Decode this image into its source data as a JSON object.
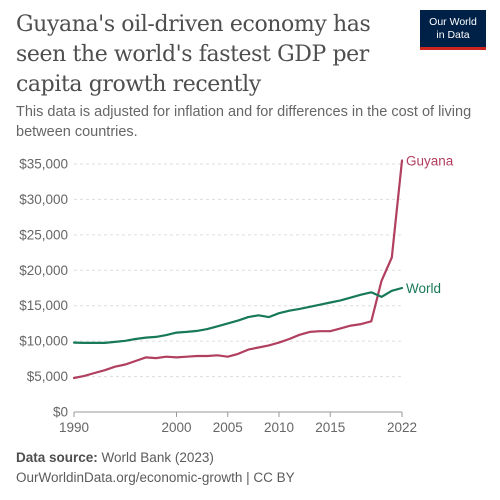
{
  "header": {
    "title": "Guyana's oil-driven economy has seen the world's fastest GDP per capita growth recently",
    "subtitle": "This data is adjusted for inflation and for differences in the cost of living between countries.",
    "logo_line1": "Our World",
    "logo_line2": "in Data"
  },
  "footer": {
    "source_label": "Data source:",
    "source_value": "World Bank (2023)",
    "url": "OurWorldinData.org/economic-growth | CC BY"
  },
  "colors": {
    "guyana": "#b13f5f",
    "world": "#18795a",
    "logo_bg": "#002147",
    "logo_accent": "#ce261e"
  },
  "chart_data": {
    "type": "line",
    "x_ticks": [
      1990,
      2000,
      2005,
      2010,
      2015,
      2022
    ],
    "y_ticks": [
      "$0",
      "$5,000",
      "$10,000",
      "$15,000",
      "$20,000",
      "$25,000",
      "$30,000",
      "$35,000"
    ],
    "y_tick_values": [
      0,
      5000,
      10000,
      15000,
      20000,
      25000,
      30000,
      35000
    ],
    "xlim": [
      1990,
      2022
    ],
    "ylim": [
      0,
      35000
    ],
    "grid": "horizontal dashed",
    "series": [
      {
        "name": "Guyana",
        "key": "guyana",
        "x": [
          1990,
          1991,
          1992,
          1993,
          1994,
          1995,
          1996,
          1997,
          1998,
          1999,
          2000,
          2001,
          2002,
          2003,
          2004,
          2005,
          2006,
          2007,
          2008,
          2009,
          2010,
          2011,
          2012,
          2013,
          2014,
          2015,
          2016,
          2017,
          2018,
          2019,
          2020,
          2021,
          2022
        ],
        "values": [
          4800,
          5100,
          5500,
          5900,
          6400,
          6700,
          7200,
          7700,
          7600,
          7800,
          7700,
          7800,
          7900,
          7900,
          8000,
          7800,
          8200,
          8800,
          9100,
          9400,
          9800,
          10300,
          10900,
          11300,
          11400,
          11400,
          11800,
          12200,
          12400,
          12800,
          18500,
          21800,
          35500
        ]
      },
      {
        "name": "World",
        "key": "world",
        "x": [
          1990,
          1991,
          1992,
          1993,
          1994,
          1995,
          1996,
          1997,
          1998,
          1999,
          2000,
          2001,
          2002,
          2003,
          2004,
          2005,
          2006,
          2007,
          2008,
          2009,
          2010,
          2011,
          2012,
          2013,
          2014,
          2015,
          2016,
          2017,
          2018,
          2019,
          2020,
          2021,
          2022
        ],
        "values": [
          9800,
          9750,
          9750,
          9750,
          9900,
          10050,
          10300,
          10500,
          10600,
          10850,
          11200,
          11300,
          11450,
          11700,
          12100,
          12500,
          12900,
          13400,
          13650,
          13400,
          13950,
          14300,
          14550,
          14850,
          15150,
          15450,
          15750,
          16150,
          16550,
          16900,
          16250,
          17100,
          17500
        ]
      }
    ]
  }
}
